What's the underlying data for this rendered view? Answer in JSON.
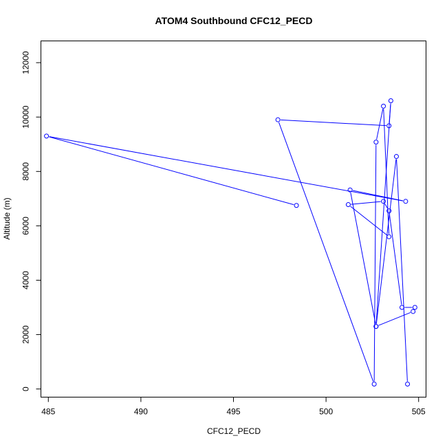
{
  "chart_data": {
    "type": "scatter",
    "title": "ATOM4 Southbound CFC12_PECD",
    "xlabel": "CFC12_PECD",
    "ylabel": "Altitude (m)",
    "xlim": [
      484.6,
      505.4
    ],
    "ylim": [
      -300,
      12800
    ],
    "x_ticks": [
      485,
      490,
      495,
      500,
      505
    ],
    "x_tick_labels": [
      "485",
      "490",
      "495",
      "500",
      "505"
    ],
    "y_ticks": [
      0,
      2000,
      4000,
      6000,
      8000,
      10000,
      12000
    ],
    "y_tick_labels": [
      "0",
      "2000",
      "4000",
      "6000",
      "8000",
      "10000",
      "12000"
    ],
    "grid": false,
    "legend": "none",
    "series": [
      {
        "color": "#0000ff",
        "marker": "open-circle",
        "connect": true,
        "x": [
          498.4,
          484.9,
          504.3,
          501.3,
          502.7,
          504.7,
          504.8,
          504.1,
          503.4,
          503.1,
          501.2,
          503.4,
          503.1,
          502.7,
          502.6,
          497.4,
          503.4,
          503.5,
          502.7,
          503.8,
          504.4
        ],
        "y": [
          6750,
          9300,
          6900,
          7320,
          2300,
          2850,
          3000,
          3000,
          6550,
          6900,
          6780,
          5600,
          10400,
          9080,
          180,
          9900,
          9680,
          10600,
          2300,
          8550,
          180
        ]
      }
    ]
  }
}
